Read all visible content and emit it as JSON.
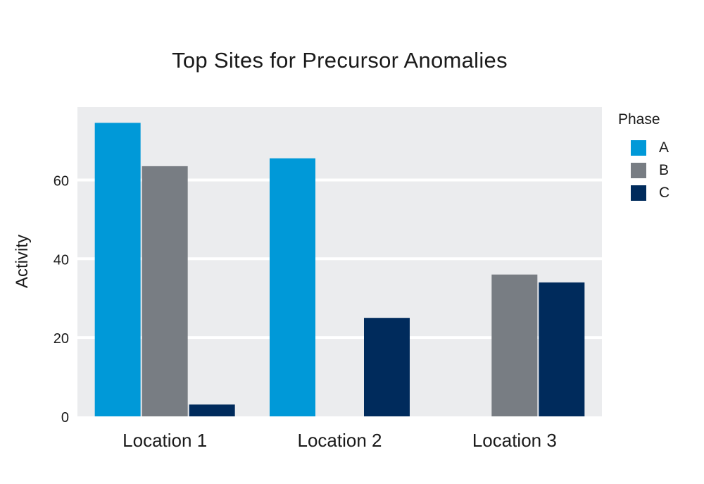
{
  "chart_data": {
    "type": "bar",
    "title": "Top Sites for Precursor Anomalies",
    "xlabel": "",
    "ylabel": "Activity",
    "categories": [
      "Location 1",
      "Location 2",
      "Location 3"
    ],
    "series": [
      {
        "name": "A",
        "color": "#0099d8",
        "values": [
          74.5,
          65.5,
          null
        ]
      },
      {
        "name": "B",
        "color": "#787d83",
        "values": [
          63.5,
          null,
          36
        ]
      },
      {
        "name": "C",
        "color": "#002b5c",
        "values": [
          3,
          25,
          34
        ]
      }
    ],
    "ylim": [
      0,
      78.5
    ],
    "yticks": [
      0,
      20,
      40,
      60
    ],
    "grid": true,
    "legend": {
      "title": "Phase",
      "position": "right"
    },
    "colors": {
      "panel": "#ebecee",
      "gridline": "#ffffff"
    }
  }
}
